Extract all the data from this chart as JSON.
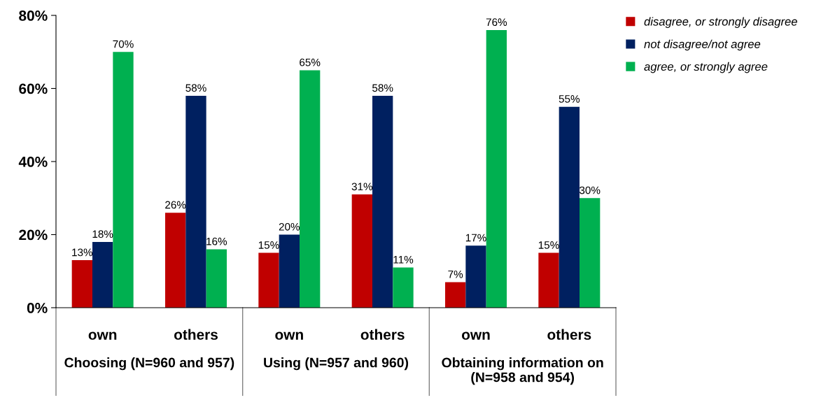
{
  "chart_data": {
    "type": "bar",
    "categories": [
      "own",
      "others",
      "own",
      "others",
      "own",
      "others"
    ],
    "series": [
      {
        "name": "disagree, or strongly disagree",
        "color": "#c00000",
        "values": [
          13,
          26,
          15,
          31,
          7,
          15
        ],
        "value_labels": [
          "13%",
          "26%",
          "15%",
          "31%",
          "7%",
          "15%"
        ]
      },
      {
        "name": "not disagree/not agree",
        "color": "#002060",
        "values": [
          18,
          58,
          20,
          58,
          17,
          55
        ],
        "value_labels": [
          "18%",
          "58%",
          "20%",
          "58%",
          "17%",
          "55%"
        ]
      },
      {
        "name": "agree, or strongly agree",
        "color": "#00b050",
        "values": [
          70,
          16,
          65,
          11,
          76,
          30
        ],
        "value_labels": [
          "70%",
          "16%",
          "65%",
          "11%",
          "76%",
          "30%"
        ]
      }
    ],
    "ylim": [
      0,
      80
    ],
    "yticks": [
      {
        "value": 0,
        "label": "0%"
      },
      {
        "value": 20,
        "label": "20%"
      },
      {
        "value": 40,
        "label": "40%"
      },
      {
        "value": 60,
        "label": "60%"
      },
      {
        "value": 80,
        "label": "80%"
      }
    ],
    "annotations": [
      "Choosing (N=960 and 957)",
      "Using (N=957 and 960)",
      "Obtaining information on (N=958 and 954)"
    ],
    "grid": false,
    "legend": "right"
  }
}
